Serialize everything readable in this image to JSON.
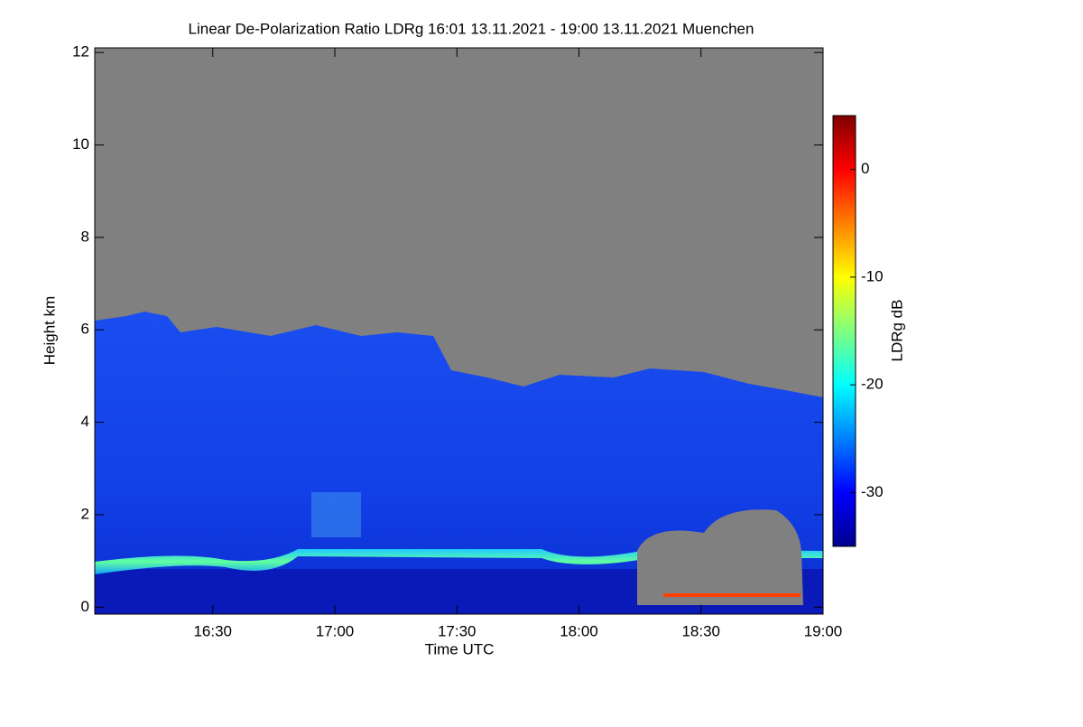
{
  "chart_data": {
    "type": "heatmap",
    "title": "Linear De-Polarization Ratio LDRg   16:01 13.11.2021 - 19:00 13.11.2021 Muenchen",
    "xlabel": "Time UTC",
    "ylabel": "Height km",
    "xlim": [
      961,
      1140
    ],
    "xticks": [
      {
        "value": 990,
        "label": "16:30"
      },
      {
        "value": 1020,
        "label": "17:00"
      },
      {
        "value": 1050,
        "label": "17:30"
      },
      {
        "value": 1080,
        "label": "18:00"
      },
      {
        "value": 1110,
        "label": "18:30"
      },
      {
        "value": 1140,
        "label": "19:00"
      }
    ],
    "ylim": [
      -0.15,
      12.1
    ],
    "yticks": [
      0,
      2,
      4,
      6,
      8,
      10,
      12
    ],
    "colorbar_label": "LDRg dB",
    "zlim": [
      -35,
      5
    ],
    "zticks": [
      -30,
      -20,
      -10,
      0
    ],
    "colormap": "jet"
  }
}
